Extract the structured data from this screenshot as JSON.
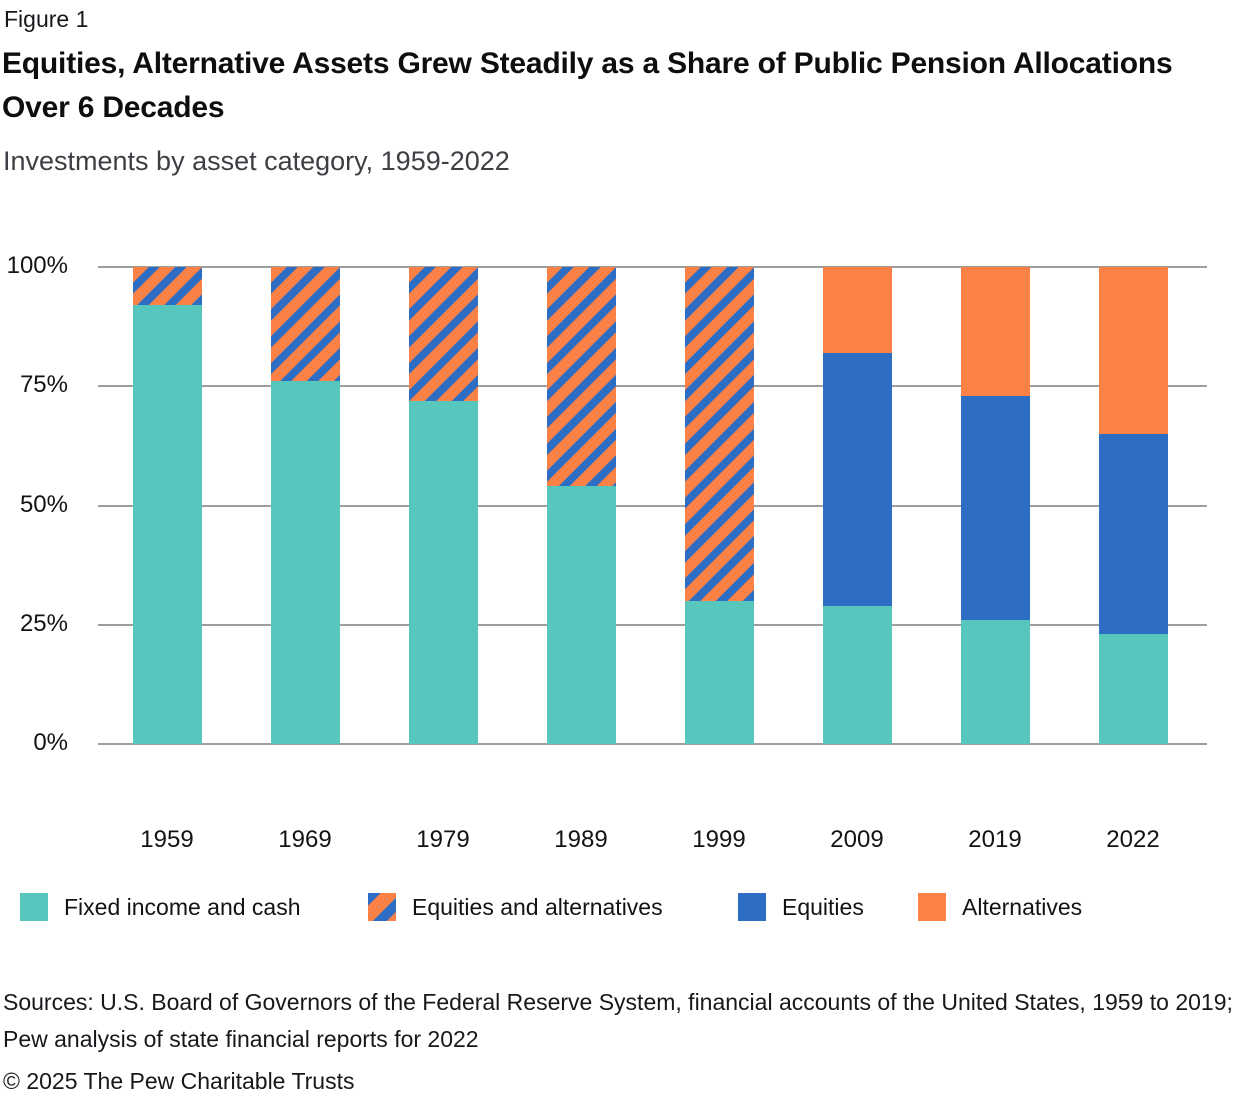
{
  "figure_label": "Figure 1",
  "title": "Equities, Alternative Assets Grew Steadily as a Share of Public Pension Allocations Over 6 Decades",
  "subtitle": "Investments by asset category, 1959-2022",
  "colors": {
    "fixed": "#57C6BC",
    "equities": "#2D6EC4",
    "alternatives": "#FC8146",
    "grid": "#9E9E9E"
  },
  "chart_data": {
    "type": "bar",
    "stacked": true,
    "unit": "%",
    "title": "Equities, Alternative Assets Grew Steadily as a Share of Public Pension Allocations Over 6 Decades",
    "subtitle": "Investments by asset category, 1959-2022",
    "categories": [
      "1959",
      "1969",
      "1979",
      "1989",
      "1999",
      "2009",
      "2019",
      "2022"
    ],
    "series": [
      {
        "name": "Fixed income and cash",
        "style": "fixed",
        "values": [
          92,
          76,
          72,
          54,
          30,
          29,
          26,
          23
        ]
      },
      {
        "name": "Equities and alternatives",
        "style": "striped",
        "values": [
          8,
          24,
          28,
          46,
          70,
          0,
          0,
          0
        ]
      },
      {
        "name": "Equities",
        "style": "equities",
        "values": [
          0,
          0,
          0,
          0,
          0,
          53,
          47,
          42
        ]
      },
      {
        "name": "Alternatives",
        "style": "alternatives",
        "values": [
          0,
          0,
          0,
          0,
          0,
          18,
          27,
          35
        ]
      }
    ],
    "yticks": [
      "100%",
      "75%",
      "50%",
      "25%",
      "0%"
    ],
    "ylim": [
      0,
      100
    ],
    "grid": "horizontal",
    "legend_position": "bottom"
  },
  "footer": {
    "sources": "Sources: U.S. Board of Governors of the Federal Reserve System, financial accounts of the United States, 1959 to 2019; Pew analysis of state financial reports for 2022",
    "copyright": "© 2025 The Pew Charitable Trusts"
  }
}
